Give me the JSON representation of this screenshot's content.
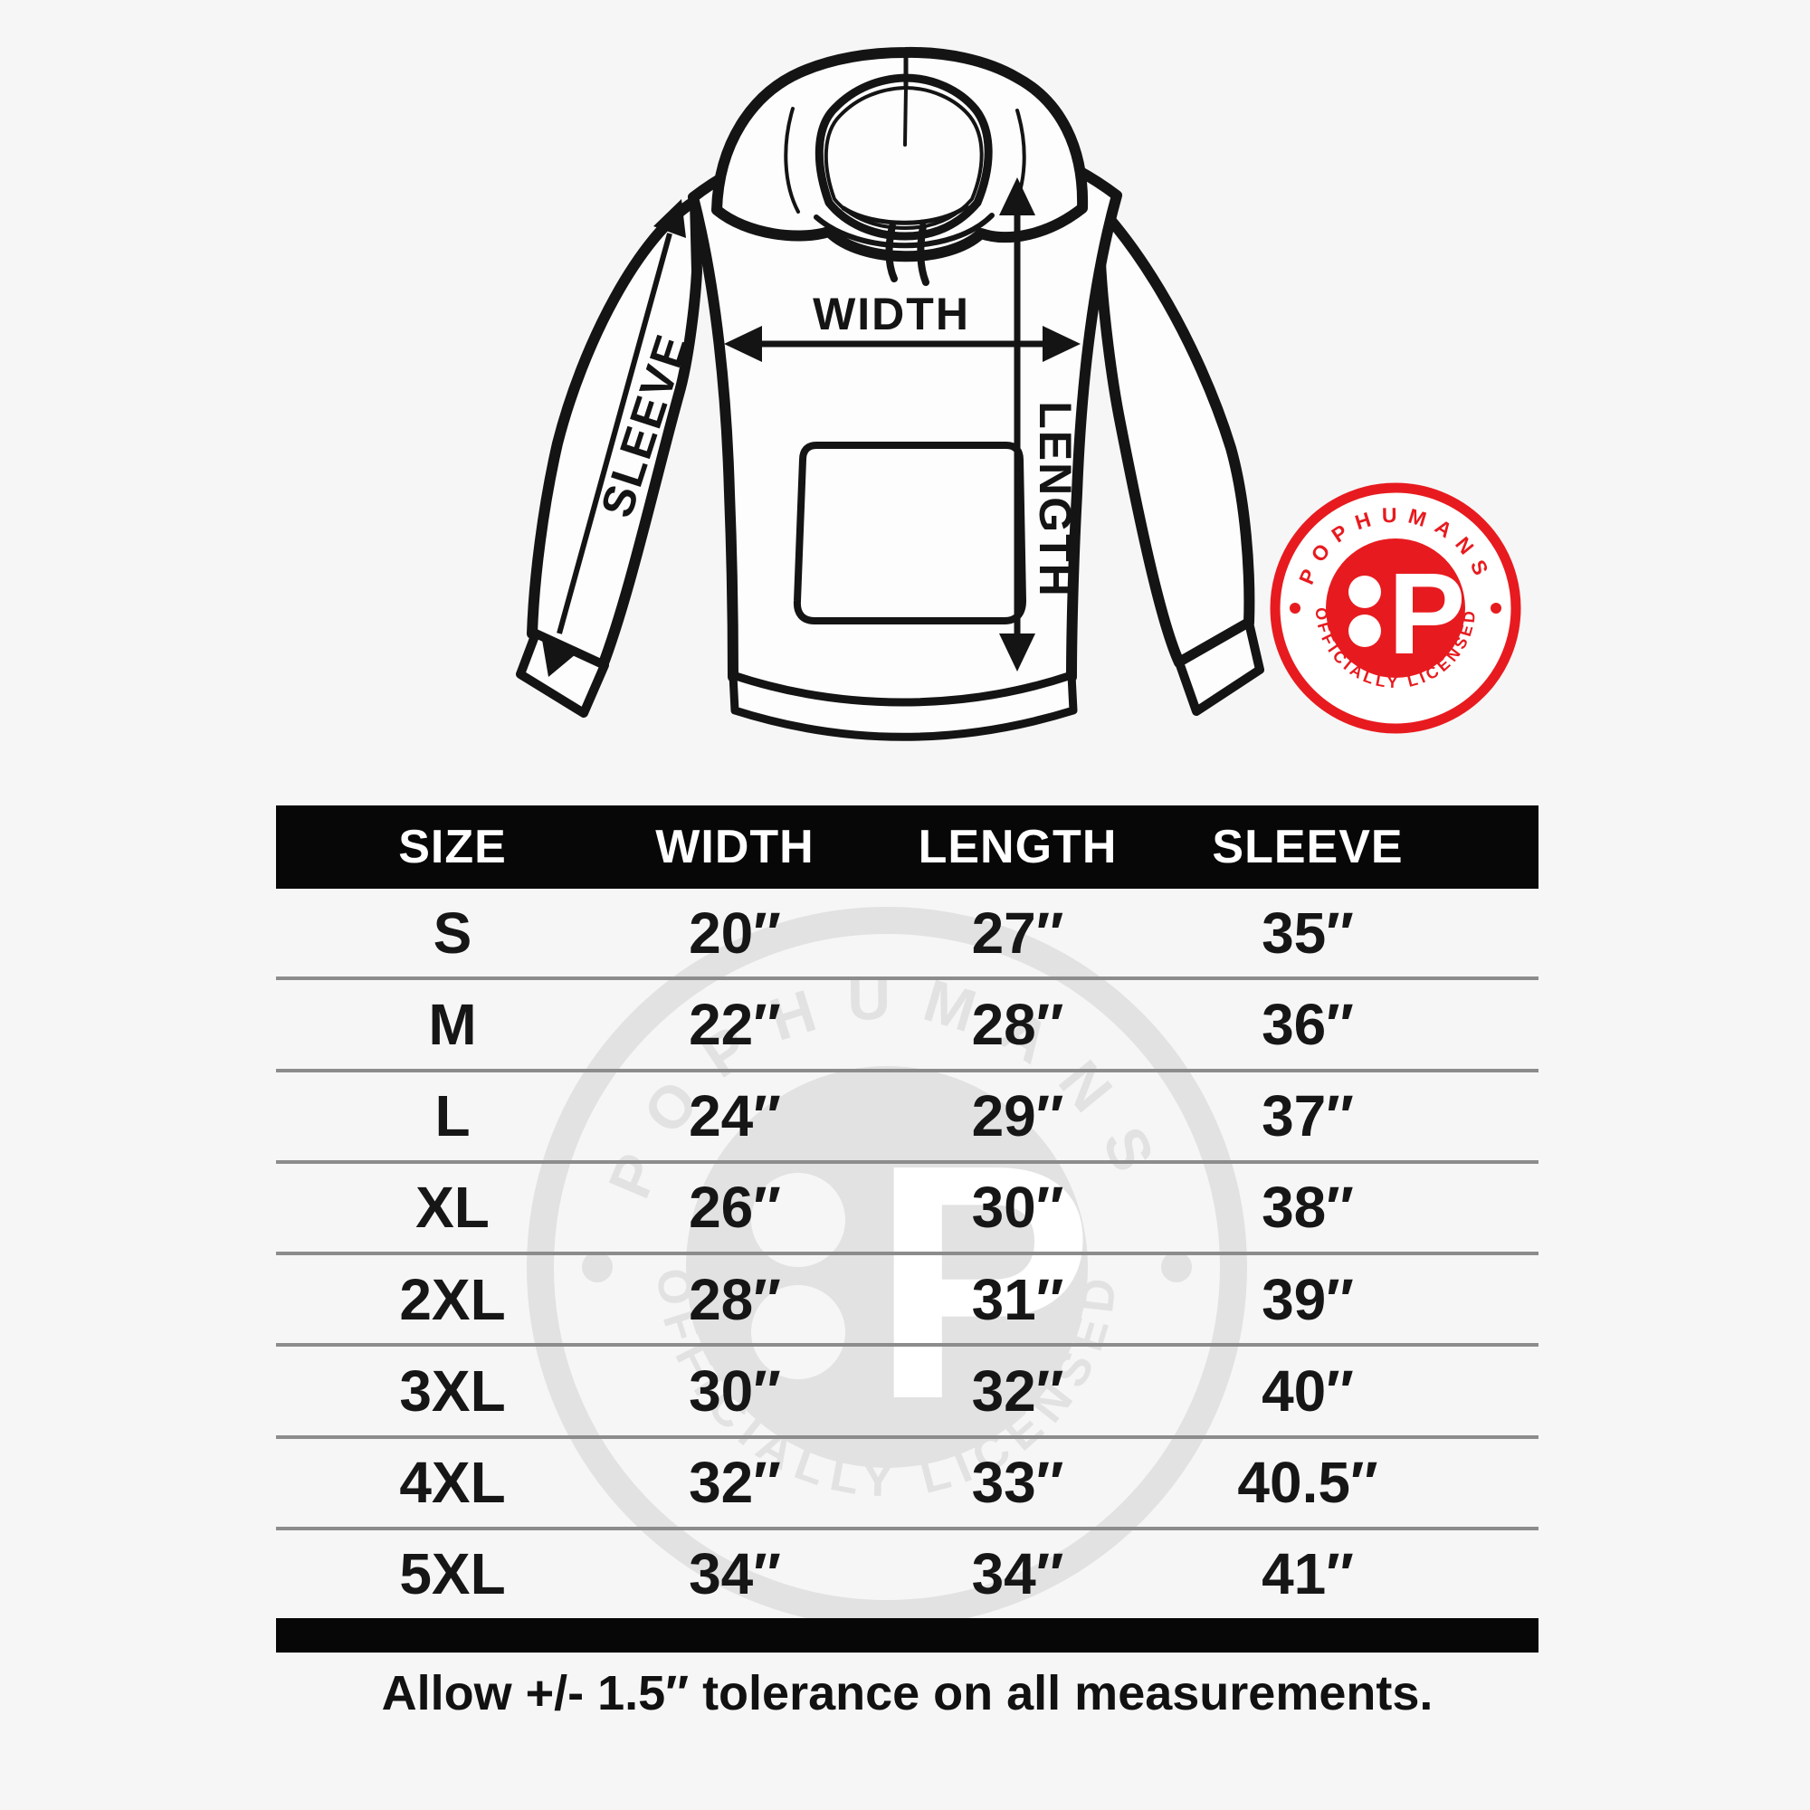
{
  "illustration": {
    "width_label": "WIDTH",
    "length_label": "LENGTH",
    "sleeve_label": "SLEEVE"
  },
  "badge": {
    "brand": "POPHUMANS",
    "tagline": "OFFICIALLY LICENSED",
    "monogram": "P",
    "color": "#e71b1f"
  },
  "watermark": {
    "brand": "POPHUMANS",
    "tagline": "OFFICIALLY LICENSED",
    "monogram": "P",
    "color": "#e2e2e2"
  },
  "table": {
    "headers": [
      "SIZE",
      "WIDTH",
      "LENGTH",
      "SLEEVE"
    ],
    "rows": [
      [
        "S",
        "20″",
        "27″",
        "35″"
      ],
      [
        "M",
        "22″",
        "28″",
        "36″"
      ],
      [
        "L",
        "24″",
        "29″",
        "37″"
      ],
      [
        "XL",
        "26″",
        "30″",
        "38″"
      ],
      [
        "2XL",
        "28″",
        "31″",
        "39″"
      ],
      [
        "3XL",
        "30″",
        "32″",
        "40″"
      ],
      [
        "4XL",
        "32″",
        "33″",
        "40.5″"
      ],
      [
        "5XL",
        "34″",
        "34″",
        "41″"
      ]
    ]
  },
  "footer": {
    "note": "Allow +/- 1.5″ tolerance on all measurements."
  },
  "colors": {
    "background": "#f6f6f6",
    "ink": "#141414",
    "bar": "#070707",
    "badge_red": "#e71b1f",
    "watermark_gray": "#e2e2e2"
  }
}
